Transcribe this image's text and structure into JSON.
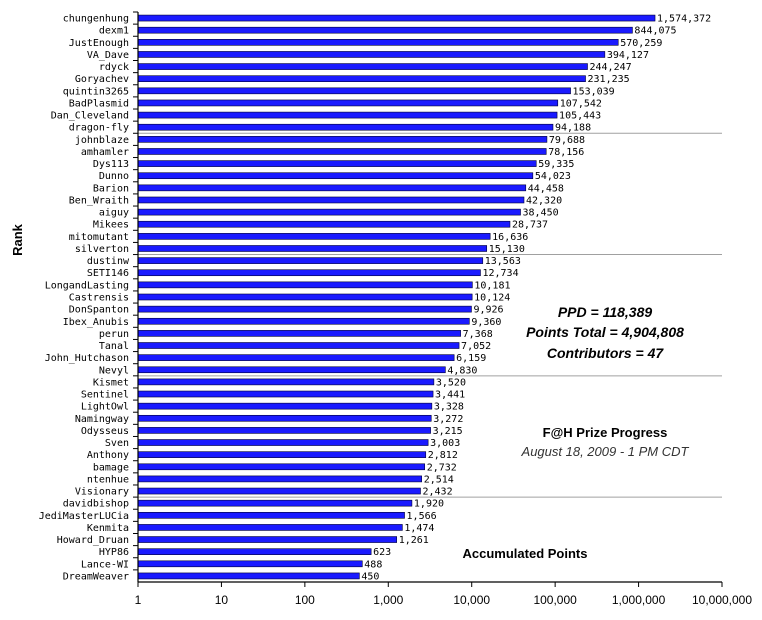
{
  "chart_data": {
    "type": "bar",
    "orientation": "horizontal",
    "x_scale": "log",
    "xlim": [
      1,
      10000000
    ],
    "x_ticks": [
      "1",
      "10",
      "100",
      "1,000",
      "10,000",
      "100,000",
      "1,000,000",
      "10,000,000"
    ],
    "ylabel": "Rank",
    "bar_color": "#1a1aff",
    "grid": "horizontal separators every 10 bars",
    "categories": [
      "chungenhung",
      "dexm1",
      "JustEnough",
      "VA_Dave",
      "rdyck",
      "Goryachev",
      "quintin3265",
      "BadPlasmid",
      "Dan_Cleveland",
      "dragon-fly",
      "johnblaze",
      "amhamler",
      "Dys113",
      "Dunno",
      "Barion",
      "Ben_Wraith",
      "aiguy",
      "Mikees",
      "mitomutant",
      "silverton",
      "dustinw",
      "SETI146",
      "LongandLasting",
      "Castrensis",
      "DonSpanton",
      "Ibex_Anubis",
      "perun",
      "Tanal",
      "John_Hutchason",
      "Nevyl",
      "Kismet",
      "Sentinel",
      "LightOwl",
      "Namingway",
      "Odysseus",
      "Sven",
      "Anthony",
      "bamage",
      "ntenhue",
      "Visionary",
      "davidbishop",
      "JediMasterLUCia",
      "Kenmita",
      "Howard_Druan",
      "HYP86",
      "Lance-WI",
      "DreamWeaver"
    ],
    "values": [
      1574372,
      844075,
      570259,
      394127,
      244247,
      231235,
      153039,
      107542,
      105443,
      94188,
      79688,
      78156,
      59335,
      54023,
      44458,
      42320,
      38450,
      28737,
      16636,
      15130,
      13563,
      12734,
      10181,
      10124,
      9926,
      9360,
      7368,
      7052,
      6159,
      4830,
      3520,
      3441,
      3328,
      3272,
      3215,
      3003,
      2812,
      2732,
      2514,
      2432,
      1920,
      1566,
      1474,
      1261,
      623,
      488,
      450
    ],
    "value_labels": [
      "1,574,372",
      "844,075",
      "570,259",
      "394,127",
      "244,247",
      "231,235",
      "153,039",
      "107,542",
      "105,443",
      "94,188",
      "79,688",
      "78,156",
      "59,335",
      "54,023",
      "44,458",
      "42,320",
      "38,450",
      "28,737",
      "16,636",
      "15,130",
      "13,563",
      "12,734",
      "10,181",
      "10,124",
      "9,926",
      "9,360",
      "7,368",
      "7,052",
      "6,159",
      "4,830",
      "3,520",
      "3,441",
      "3,328",
      "3,272",
      "3,215",
      "3,003",
      "2,812",
      "2,732",
      "2,514",
      "2,432",
      "1,920",
      "1,566",
      "1,474",
      "1,261",
      "623",
      "488",
      "450"
    ],
    "annotations": {
      "ppd": "PPD = 118,389",
      "points_total": "Points Total = 4,904,808",
      "contributors": "Contributors = 47",
      "title": "F@H Prize Progress",
      "subtitle": "August 18, 2009 - 1 PM CDT",
      "footer": "Accumulated Points"
    }
  }
}
